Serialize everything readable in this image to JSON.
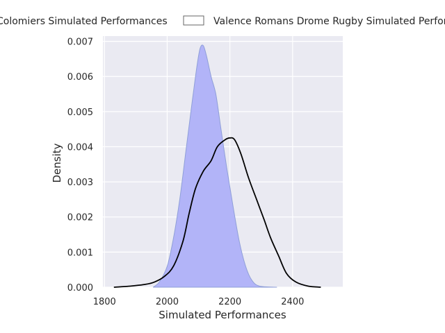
{
  "chart_data": {
    "type": "area",
    "xlabel": "Simulated Performances",
    "ylabel": "Density",
    "xlim": [
      1795,
      2560
    ],
    "ylim": [
      0,
      0.00715
    ],
    "x_ticks": [
      1800,
      2000,
      2200,
      2400
    ],
    "y_ticks": [
      0.0,
      0.001,
      0.002,
      0.003,
      0.004,
      0.005,
      0.006,
      0.007
    ],
    "y_tick_labels": [
      "0.000",
      "0.001",
      "0.002",
      "0.003",
      "0.004",
      "0.005",
      "0.006",
      "0.007"
    ],
    "x_tick_labels": [
      "1800",
      "2000",
      "2200",
      "2400"
    ],
    "grid": true,
    "legend_position": "top",
    "series": [
      {
        "name": "Colomiers Simulated Performances",
        "style": "filled",
        "color": "#b2b4f8",
        "points": [
          [
            1955,
            0
          ],
          [
            1975,
            0.00015
          ],
          [
            2000,
            0.0006
          ],
          [
            2020,
            0.0014
          ],
          [
            2040,
            0.0025
          ],
          [
            2060,
            0.0039
          ],
          [
            2080,
            0.0053
          ],
          [
            2095,
            0.0063
          ],
          [
            2105,
            0.0068
          ],
          [
            2115,
            0.00688
          ],
          [
            2125,
            0.0066
          ],
          [
            2140,
            0.006
          ],
          [
            2155,
            0.0055
          ],
          [
            2170,
            0.0046
          ],
          [
            2190,
            0.0034
          ],
          [
            2210,
            0.0023
          ],
          [
            2230,
            0.0013
          ],
          [
            2250,
            0.0006
          ],
          [
            2270,
            0.0002
          ],
          [
            2295,
            3e-05
          ],
          [
            2350,
            0
          ]
        ]
      },
      {
        "name": "Valence Romans Drome Rugby Simulated Performances",
        "style": "line",
        "color": "#000000",
        "points": [
          [
            1830,
            0
          ],
          [
            1880,
            3e-05
          ],
          [
            1930,
            8e-05
          ],
          [
            1960,
            0.00015
          ],
          [
            1990,
            0.0003
          ],
          [
            2020,
            0.0006
          ],
          [
            2050,
            0.0013
          ],
          [
            2070,
            0.0021
          ],
          [
            2090,
            0.0028
          ],
          [
            2115,
            0.0033
          ],
          [
            2140,
            0.0036
          ],
          [
            2160,
            0.004
          ],
          [
            2185,
            0.0042
          ],
          [
            2200,
            0.00425
          ],
          [
            2215,
            0.0042
          ],
          [
            2235,
            0.0038
          ],
          [
            2260,
            0.0031
          ],
          [
            2285,
            0.0025
          ],
          [
            2310,
            0.0019
          ],
          [
            2330,
            0.0014
          ],
          [
            2355,
            0.0009
          ],
          [
            2380,
            0.0004
          ],
          [
            2410,
            0.00015
          ],
          [
            2450,
            3e-05
          ],
          [
            2490,
            0
          ]
        ]
      }
    ]
  }
}
